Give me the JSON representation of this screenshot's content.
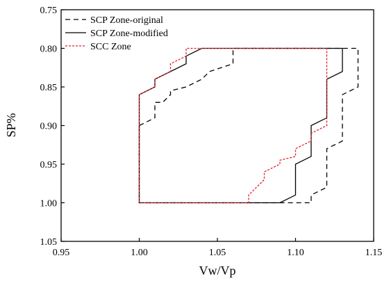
{
  "chart_data": {
    "type": "line",
    "xlabel": "Vw/Vp",
    "ylabel": "SP%",
    "xlim": [
      0.95,
      1.15
    ],
    "ylim": [
      0.75,
      1.05
    ],
    "y_inverted": true,
    "x_ticks": [
      {
        "value": 0.95,
        "label": "0.95"
      },
      {
        "value": 1.0,
        "label": "1.00"
      },
      {
        "value": 1.05,
        "label": "1.05"
      },
      {
        "value": 1.1,
        "label": "1.10"
      },
      {
        "value": 1.15,
        "label": "1.15"
      }
    ],
    "y_ticks": [
      {
        "value": 0.75,
        "label": "0.75"
      },
      {
        "value": 0.8,
        "label": "0.80"
      },
      {
        "value": 0.85,
        "label": "0.85"
      },
      {
        "value": 0.9,
        "label": "0.90"
      },
      {
        "value": 0.95,
        "label": "0.95"
      },
      {
        "value": 1.0,
        "label": "1.00"
      },
      {
        "value": 1.05,
        "label": "1.05"
      }
    ],
    "grid": false,
    "legend_position": "top-left",
    "series": [
      {
        "name": "SCP Zone-original",
        "color": "#000000",
        "dash": "dashed",
        "points": [
          [
            1.0,
            0.9
          ],
          [
            1.01,
            0.89
          ],
          [
            1.01,
            0.87
          ],
          [
            1.015,
            0.87
          ],
          [
            1.02,
            0.86
          ],
          [
            1.02,
            0.855
          ],
          [
            1.03,
            0.85
          ],
          [
            1.04,
            0.84
          ],
          [
            1.045,
            0.83
          ],
          [
            1.06,
            0.82
          ],
          [
            1.06,
            0.8
          ],
          [
            1.14,
            0.8
          ],
          [
            1.14,
            0.85
          ],
          [
            1.13,
            0.86
          ],
          [
            1.13,
            0.92
          ],
          [
            1.12,
            0.93
          ],
          [
            1.12,
            0.98
          ],
          [
            1.11,
            0.99
          ],
          [
            1.11,
            1.0
          ],
          [
            1.09,
            1.0
          ],
          [
            1.0,
            1.0
          ],
          [
            1.0,
            0.9
          ]
        ]
      },
      {
        "name": "SCP Zone-modified",
        "color": "#000000",
        "dash": "solid",
        "points": [
          [
            1.0,
            0.86
          ],
          [
            1.01,
            0.85
          ],
          [
            1.01,
            0.84
          ],
          [
            1.03,
            0.82
          ],
          [
            1.03,
            0.81
          ],
          [
            1.04,
            0.8
          ],
          [
            1.13,
            0.8
          ],
          [
            1.13,
            0.83
          ],
          [
            1.12,
            0.84
          ],
          [
            1.12,
            0.89
          ],
          [
            1.11,
            0.9
          ],
          [
            1.11,
            0.94
          ],
          [
            1.1,
            0.95
          ],
          [
            1.1,
            0.99
          ],
          [
            1.09,
            1.0
          ],
          [
            1.0,
            1.0
          ],
          [
            1.0,
            0.86
          ]
        ]
      },
      {
        "name": "SCC Zone",
        "color": "#e0202a",
        "dash": "dotted",
        "points": [
          [
            1.0,
            0.86
          ],
          [
            1.01,
            0.85
          ],
          [
            1.01,
            0.84
          ],
          [
            1.02,
            0.83
          ],
          [
            1.02,
            0.82
          ],
          [
            1.03,
            0.81
          ],
          [
            1.03,
            0.8
          ],
          [
            1.12,
            0.8
          ],
          [
            1.12,
            0.9
          ],
          [
            1.11,
            0.91
          ],
          [
            1.11,
            0.92
          ],
          [
            1.1,
            0.93
          ],
          [
            1.1,
            0.94
          ],
          [
            1.09,
            0.945
          ],
          [
            1.09,
            0.95
          ],
          [
            1.08,
            0.96
          ],
          [
            1.08,
            0.97
          ],
          [
            1.07,
            0.99
          ],
          [
            1.07,
            1.0
          ],
          [
            1.0,
            1.0
          ],
          [
            1.0,
            0.86
          ]
        ]
      }
    ]
  }
}
